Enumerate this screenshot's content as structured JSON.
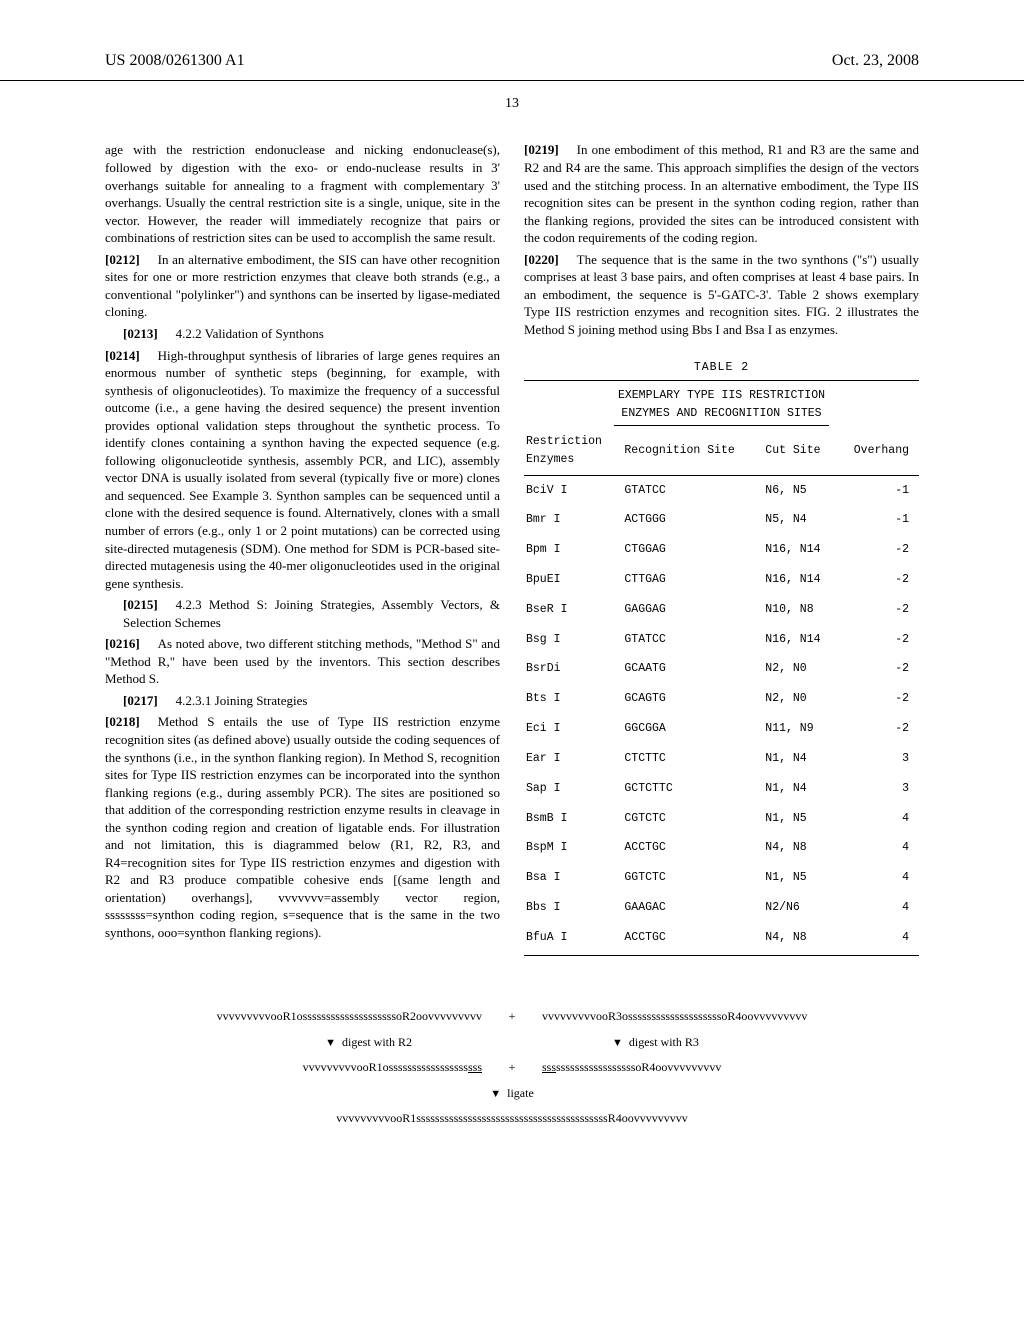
{
  "header": {
    "pub_number": "US 2008/0261300 A1",
    "pub_date": "Oct. 23, 2008",
    "page_number": "13"
  },
  "left": {
    "p_cont": "age with the restriction endonuclease and nicking endonuclease(s), followed by digestion with the exo- or endo-nuclease results in 3' overhangs suitable for annealing to a fragment with complementary 3' overhangs. Usually the central restriction site is a single, unique, site in the vector. However, the reader will immediately recognize that pairs or combinations of restriction sites can be used to accomplish the same result.",
    "p0212_num": "[0212]",
    "p0212": "In an alternative embodiment, the SIS can have other recognition sites for one or more restriction enzymes that cleave both strands (e.g., a conventional \"polylinker\") and synthons can be inserted by ligase-mediated cloning.",
    "p0213_num": "[0213]",
    "p0213": "4.2.2 Validation of Synthons",
    "p0214_num": "[0214]",
    "p0214": "High-throughput synthesis of libraries of large genes requires an enormous number of synthetic steps (beginning, for example, with synthesis of oligonucleotides). To maximize the frequency of a successful outcome (i.e., a gene having the desired sequence) the present invention provides optional validation steps throughout the synthetic process. To identify clones containing a synthon having the expected sequence (e.g. following oligonucleotide synthesis, assembly PCR, and LIC), assembly vector DNA is usually isolated from several (typically five or more) clones and sequenced. See Example 3. Synthon samples can be sequenced until a clone with the desired sequence is found. Alternatively, clones with a small number of errors (e.g., only 1 or 2 point mutations) can be corrected using site-directed mutagenesis (SDM). One method for SDM is PCR-based site-directed mutagenesis using the 40-mer oligonucleotides used in the original gene synthesis.",
    "p0215_num": "[0215]",
    "p0215": "4.2.3 Method S: Joining Strategies, Assembly Vectors, & Selection Schemes",
    "p0216_num": "[0216]",
    "p0216": "As noted above, two different stitching methods, \"Method S\" and \"Method R,\" have been used by the inventors. This section describes Method S.",
    "p0217_num": "[0217]",
    "p0217": "4.2.3.1 Joining Strategies",
    "p0218_num": "[0218]",
    "p0218": "Method S entails the use of Type IIS restriction enzyme recognition sites (as defined above) usually outside the coding sequences of the synthons (i.e., in the synthon flanking region). In Method S, recognition sites for Type IIS restriction enzymes can be incorporated into the synthon flanking regions (e.g., during assembly PCR). The sites are positioned so that addition of the corresponding restriction enzyme results in cleavage in the synthon coding region and creation of ligatable ends. For illustration and not limitation, this is diagrammed below (R1, R2, R3, and R4=recognition sites for Type IIS restriction enzymes and digestion with R2 and R3 produce compatible cohesive ends [(same length and orientation) overhangs], vvvvvvv=assembly vector region, ssssssss=synthon coding region, s=sequence that is the same in the two synthons, ooo=synthon flanking regions)."
  },
  "right": {
    "p0219_num": "[0219]",
    "p0219": "In one embodiment of this method, R1 and R3 are the same and R2 and R4 are the same. This approach simplifies the design of the vectors used and the stitching process. In an alternative embodiment, the Type IIS recognition sites can be present in the synthon coding region, rather than the flanking regions, provided the sites can be introduced consistent with the codon requirements of the coding region.",
    "p0220_num": "[0220]",
    "p0220": "The sequence that is the same in the two synthons (\"s\") usually comprises at least 3 base pairs, and often comprises at least 4 base pairs. In an embodiment, the sequence is 5'-GATC-3'. Table 2 shows exemplary Type IIS restriction enzymes and recognition sites. FIG. 2 illustrates the Method S joining method using Bbs I and Bsa I as enzymes."
  },
  "table": {
    "label": "TABLE 2",
    "subtitle1": "EXEMPLARY TYPE IIS RESTRICTION",
    "subtitle2": "ENZYMES AND RECOGNITION SITES",
    "headers": {
      "c1a": "Restriction",
      "c1b": "Enzymes",
      "c2": "Recognition Site",
      "c3": "Cut Site",
      "c4": "Overhang"
    },
    "rows": [
      {
        "e": "BciV I",
        "r": "GTATCC",
        "c": "N6, N5",
        "o": "-1"
      },
      {
        "e": "Bmr I",
        "r": "ACTGGG",
        "c": "N5, N4",
        "o": "-1"
      },
      {
        "e": "Bpm I",
        "r": "CTGGAG",
        "c": "N16, N14",
        "o": "-2"
      },
      {
        "e": "BpuEI",
        "r": "CTTGAG",
        "c": "N16, N14",
        "o": "-2"
      },
      {
        "e": "BseR I",
        "r": "GAGGAG",
        "c": "N10, N8",
        "o": "-2"
      },
      {
        "e": "Bsg I",
        "r": "GTATCC",
        "c": "N16, N14",
        "o": "-2"
      },
      {
        "e": "BsrDi",
        "r": "GCAATG",
        "c": "N2, N0",
        "o": "-2"
      },
      {
        "e": "Bts I",
        "r": "GCAGTG",
        "c": "N2, N0",
        "o": "-2"
      },
      {
        "e": "Eci I",
        "r": "GGCGGA",
        "c": "N11, N9",
        "o": "-2"
      },
      {
        "e": "Ear I",
        "r": "CTCTTC",
        "c": "N1, N4",
        "o": "3"
      },
      {
        "e": "Sap I",
        "r": "GCTCTTC",
        "c": "N1, N4",
        "o": "3"
      },
      {
        "e": "BsmB I",
        "r": "CGTCTC",
        "c": "N1, N5",
        "o": "4"
      },
      {
        "e": "BspM I",
        "r": "ACCTGC",
        "c": "N4, N8",
        "o": "4"
      },
      {
        "e": "Bsa I",
        "r": "GGTCTC",
        "c": "N1, N5",
        "o": "4"
      },
      {
        "e": "Bbs I",
        "r": "GAAGAC",
        "c": "N2/N6",
        "o": "4"
      },
      {
        "e": "BfuA I",
        "r": "ACCTGC",
        "c": "N4, N8",
        "o": "4"
      }
    ]
  },
  "diagram": {
    "row1_left": "vvvvvvvvvooR1ossssssssssssssssssssoR2oovvvvvvvvv",
    "row1_right": "vvvvvvvvvooR3ossssssssssssssssssssoR4oovvvvvvvvv",
    "digest_r2": "digest with R2",
    "digest_r3": "digest with R3",
    "row2_left_a": "vvvvvvvvvooR1osssssssssssssssss",
    "row2_left_b": "sss",
    "row2_right_a": "sss",
    "row2_right_b": "sssssssssssssssssoR4oovvvvvvvvv",
    "ligate": "ligate",
    "row3": "vvvvvvvvvooR1sssssssssssssssssssssssssssssssssssssssssR4oovvvvvvvvv"
  }
}
